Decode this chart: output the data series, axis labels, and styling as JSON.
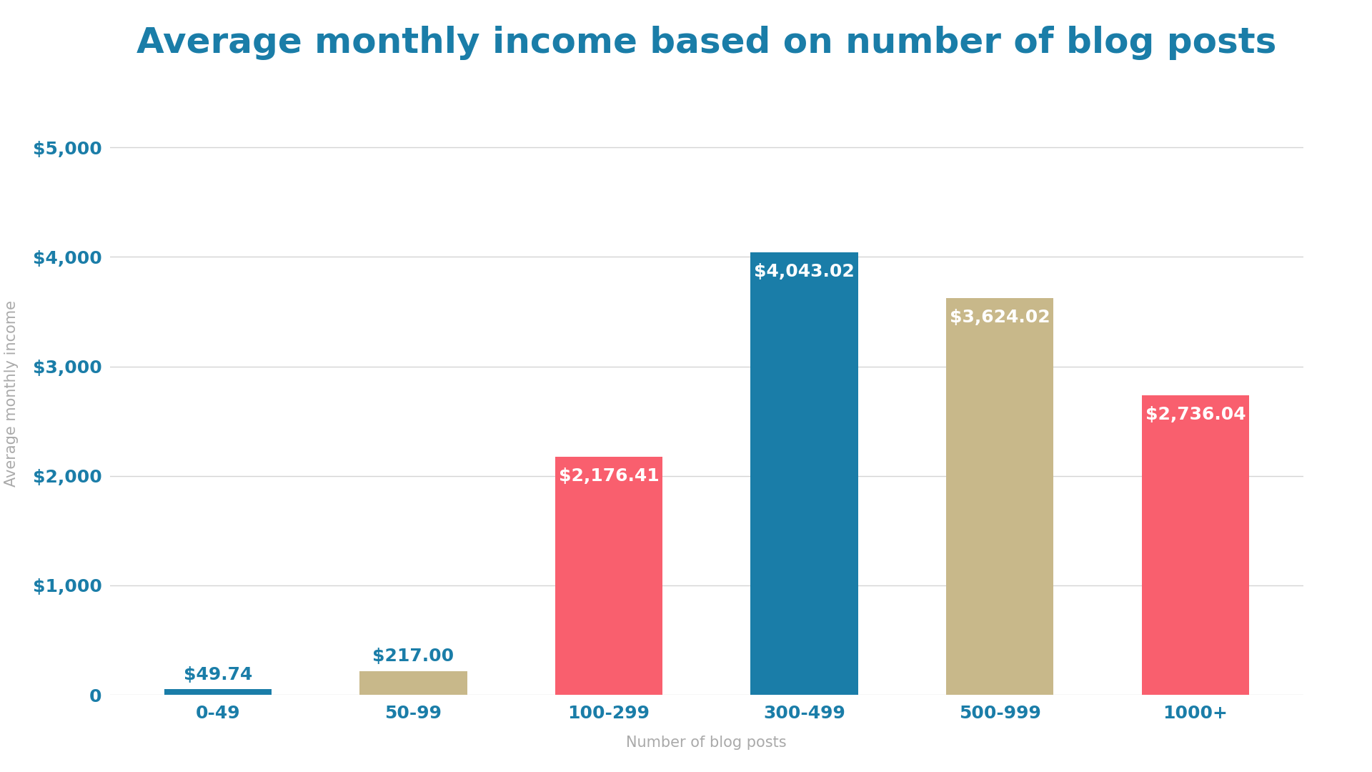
{
  "title": "Average monthly income based on number of blog posts",
  "xlabel": "Number of blog posts",
  "ylabel": "Average monthly income",
  "categories": [
    "0-49",
    "50-99",
    "100-299",
    "300-499",
    "500-999",
    "1000+"
  ],
  "values": [
    49.74,
    217.0,
    2176.41,
    4043.02,
    3624.02,
    2736.04
  ],
  "labels": [
    "$49.74",
    "$217.00",
    "$2,176.41",
    "$4,043.02",
    "$3,624.02",
    "$2,736.04"
  ],
  "bar_colors": [
    "#1a7da8",
    "#c8b88a",
    "#f95f6e",
    "#1a7da8",
    "#c8b88a",
    "#f95f6e"
  ],
  "label_colors": [
    "#1a7da8",
    "#1a7da8",
    "#ffffff",
    "#ffffff",
    "#ffffff",
    "#ffffff"
  ],
  "title_color": "#1a7da8",
  "axis_label_color": "#aaaaaa",
  "tick_label_color": "#1a7da8",
  "ytick_color": "#1a7da8",
  "grid_color": "#d4d4d4",
  "background_color": "#ffffff",
  "ylim": [
    0,
    5500
  ],
  "yticks": [
    0,
    1000,
    2000,
    3000,
    4000,
    5000
  ],
  "ytick_labels": [
    "0",
    "$1,000",
    "$2,000",
    "$3,000",
    "$4,000",
    "$5,000"
  ],
  "title_fontsize": 36,
  "axis_label_fontsize": 15,
  "tick_fontsize": 18,
  "bar_label_fontsize": 18
}
